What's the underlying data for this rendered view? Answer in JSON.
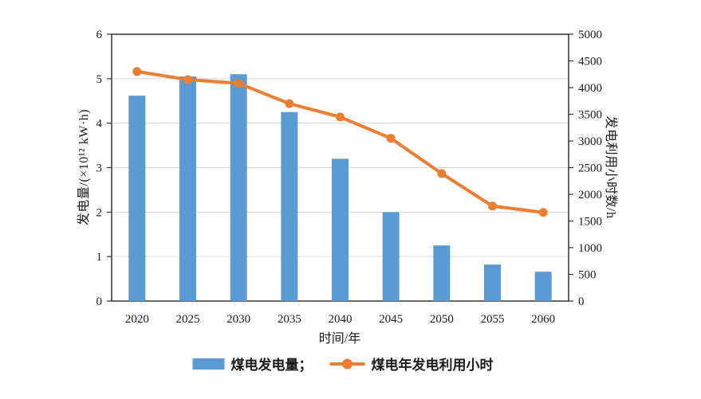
{
  "chart_data": {
    "type": "bar+line combo, dual y-axis",
    "categories": [
      "2020",
      "2025",
      "2030",
      "2035",
      "2040",
      "2045",
      "2050",
      "2055",
      "2060"
    ],
    "series": [
      {
        "name": "煤电发电量",
        "type": "bar",
        "axis": "left",
        "color": "#5B9BD5",
        "values": [
          4.62,
          5.05,
          5.1,
          4.25,
          3.2,
          2.0,
          1.25,
          0.82,
          0.66
        ]
      },
      {
        "name": "煤电年发电利用小时",
        "type": "line",
        "axis": "right",
        "color": "#ED7D31",
        "values": [
          4300,
          4150,
          4080,
          3700,
          3450,
          3050,
          2390,
          1780,
          1660
        ]
      }
    ],
    "left_axis": {
      "label": "发电量/(×10¹² kW·h)",
      "min": 0,
      "max": 6,
      "step": 1,
      "ticks": [
        0,
        1,
        2,
        3,
        4,
        5,
        6
      ]
    },
    "right_axis": {
      "label": "发电利用小时数/h",
      "min": 0,
      "max": 5000,
      "step": 500,
      "ticks": [
        0,
        500,
        1000,
        1500,
        2000,
        2500,
        3000,
        3500,
        4000,
        4500,
        5000
      ]
    },
    "xlabel": "时间/年",
    "legend": {
      "position": "bottom",
      "bar_label": "煤电发电量；",
      "line_label": "煤电年发电利用小时"
    },
    "grid": true,
    "grid_color": "#d9d9d9",
    "axis_color": "#333333",
    "background": "#ffffff"
  }
}
